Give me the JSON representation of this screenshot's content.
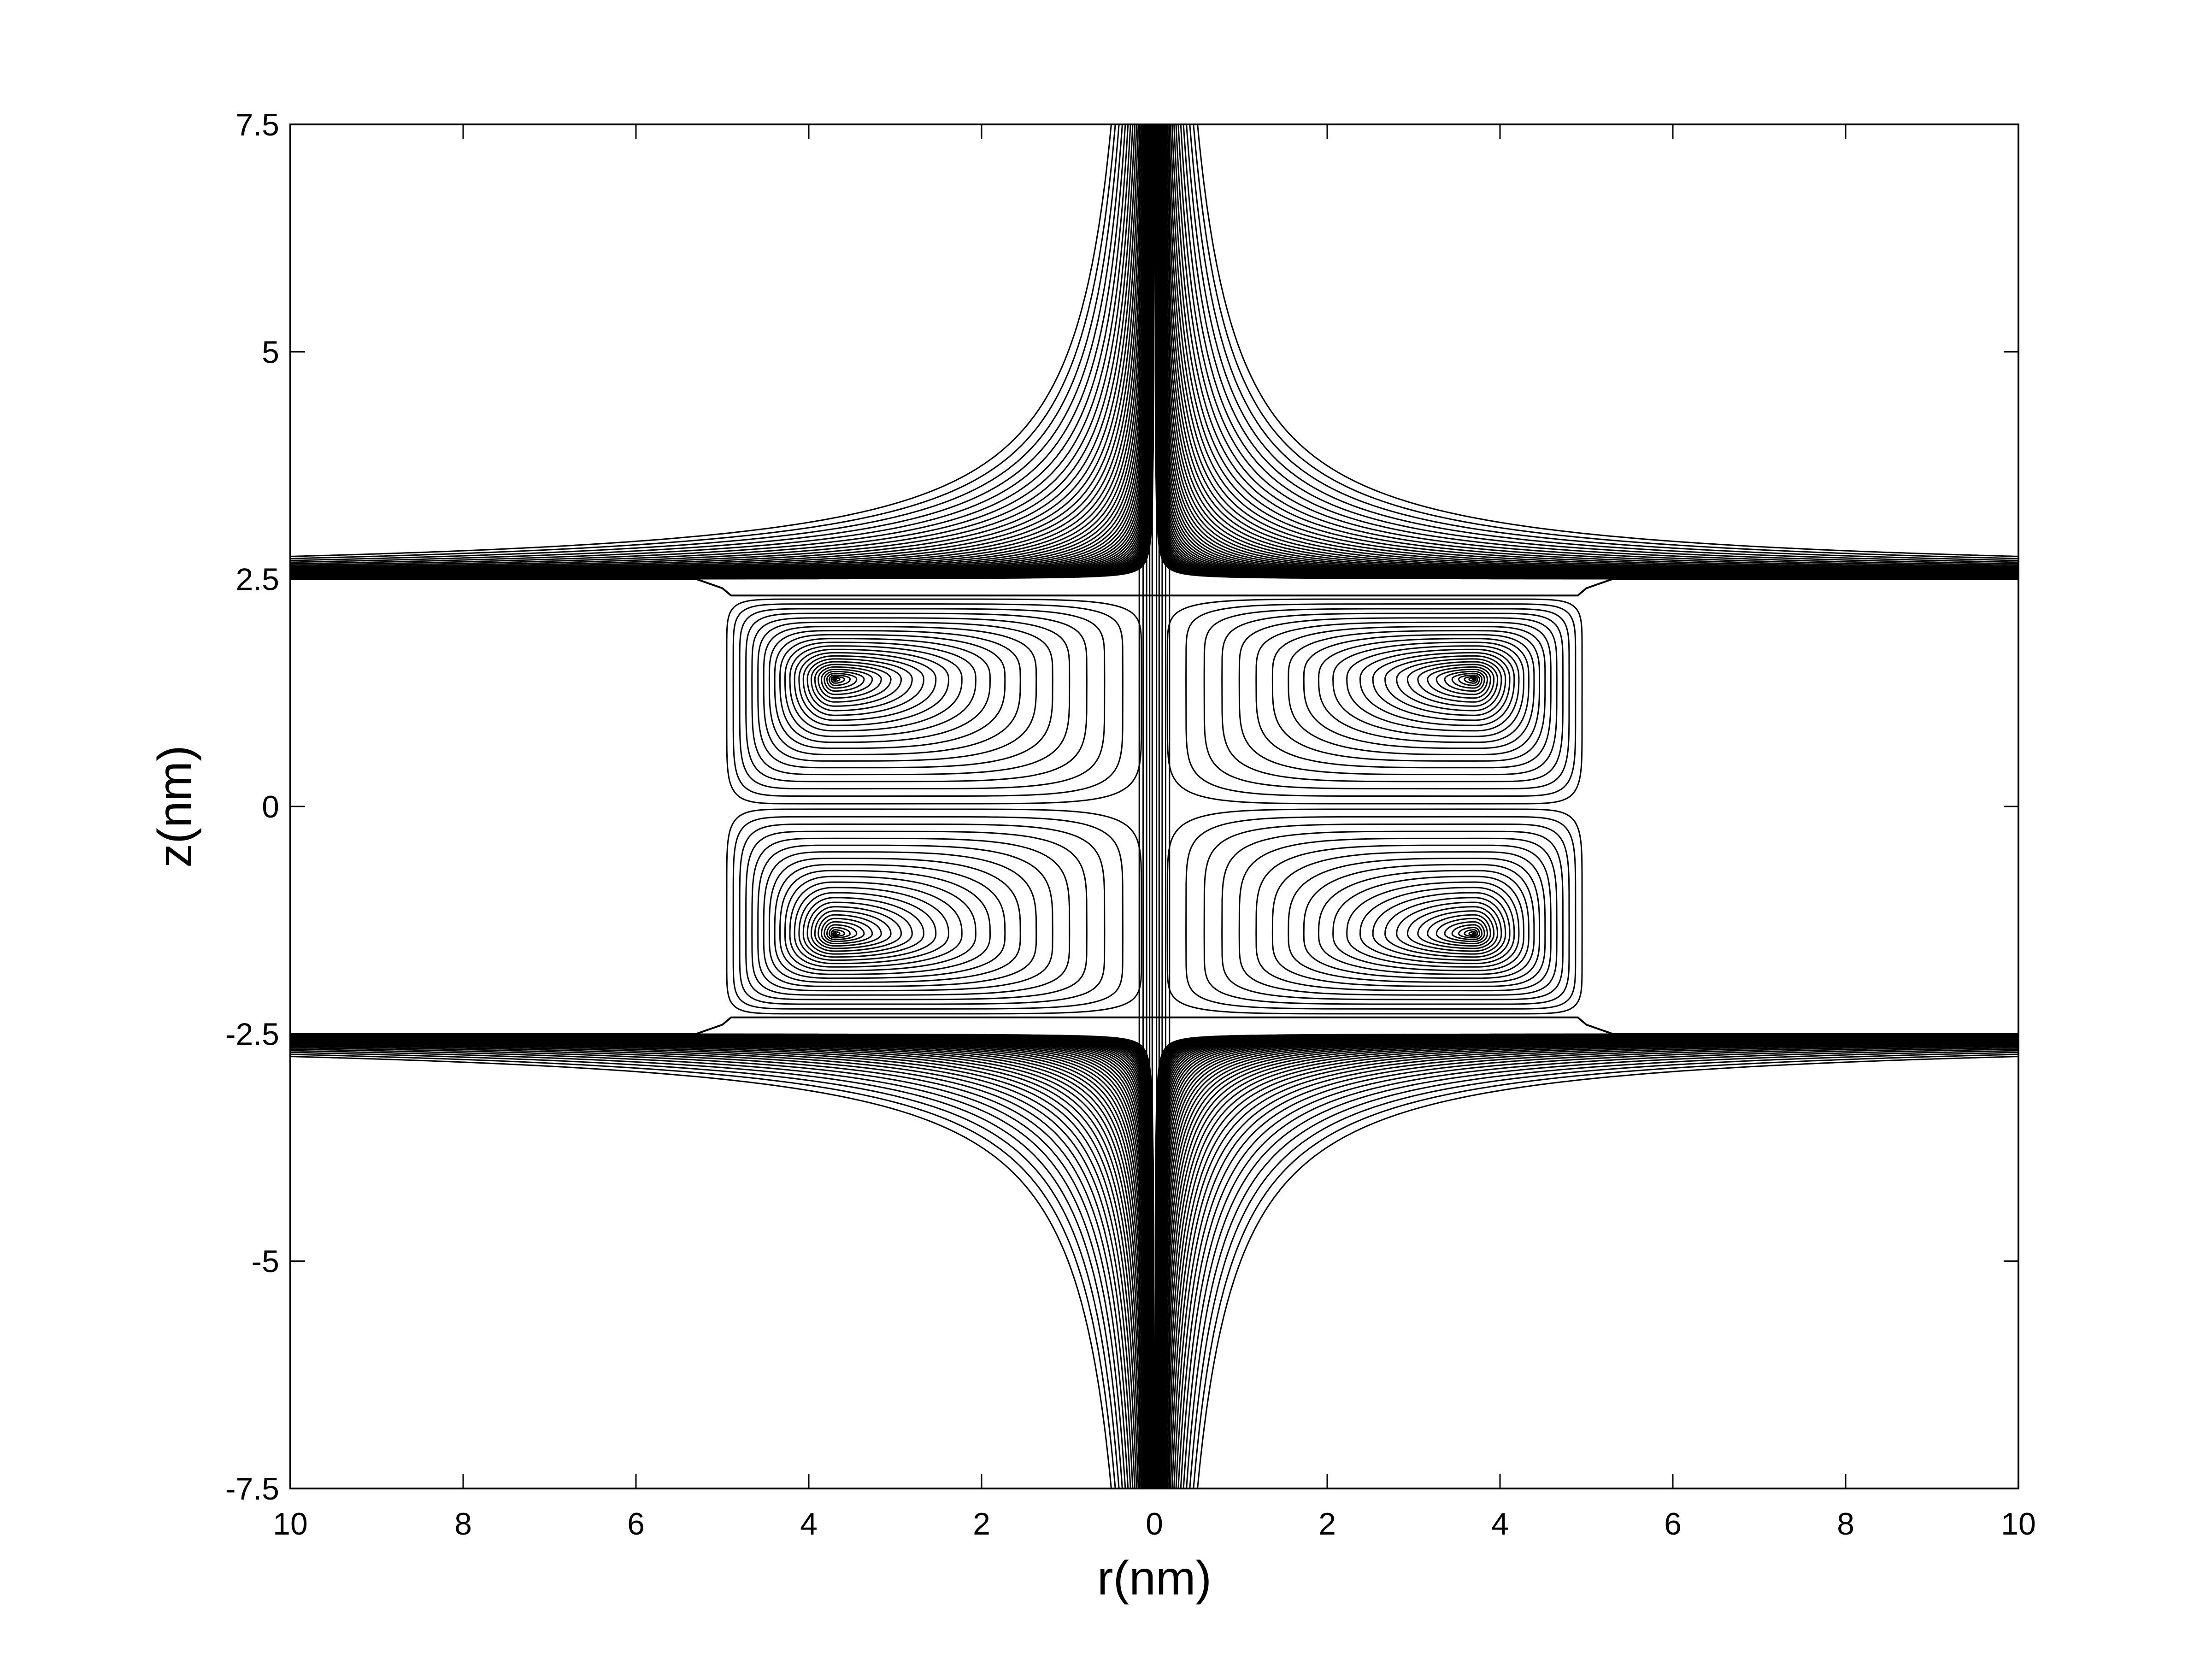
{
  "chart_data": {
    "type": "contour",
    "title": "",
    "xlabel": "r(nm)",
    "ylabel": "z(nm)",
    "xlim": [
      -10,
      10
    ],
    "ylim": [
      -7.5,
      7.5
    ],
    "x_tick_values": [
      -10,
      -8,
      -6,
      -4,
      -2,
      0,
      2,
      4,
      6,
      8,
      10
    ],
    "x_tick_labels": [
      "10",
      "8",
      "6",
      "4",
      "2",
      "0",
      "2",
      "4",
      "6",
      "8",
      "10"
    ],
    "y_tick_values": [
      7.5,
      5,
      2.5,
      0,
      -2.5,
      -5,
      -7.5
    ],
    "y_tick_labels": [
      "7.5",
      "5",
      "2.5",
      "0",
      "-2.5",
      "-5",
      "-7.5"
    ],
    "grid": false,
    "line_color": "#000000",
    "channel": {
      "r_half_width": 5,
      "z_half_height": 2.5
    },
    "vortex_centers": [
      {
        "r": -3.7,
        "z": 1.4
      },
      {
        "r": 3.7,
        "z": 1.4
      },
      {
        "r": -3.7,
        "z": -1.4
      },
      {
        "r": 3.7,
        "z": -1.4
      }
    ]
  }
}
